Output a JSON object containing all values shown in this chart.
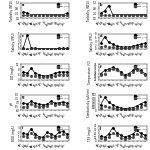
{
  "months": [
    "Jan",
    "Feb",
    "Mar",
    "Apr",
    "May",
    "Jun",
    "Jul",
    "Aug",
    "Sep",
    "Oct",
    "Nov",
    "Dec"
  ],
  "panels": [
    {
      "label": "a",
      "ylabel": "Turbidity (NTU)",
      "xlabel": "Months",
      "dry": [
        0.5,
        0.4,
        0.3,
        0.3,
        0.3,
        0.3,
        0.3,
        0.3,
        0.3,
        0.3,
        0.3,
        0.4
      ],
      "wet": [
        0.3,
        0.3,
        0.3,
        0.3,
        0.3,
        0.3,
        0.3,
        0.3,
        0.3,
        0.3,
        0.3,
        0.3
      ],
      "ylim": [
        0,
        1.2
      ],
      "yticks": [
        0,
        0.4,
        0.8,
        1.2
      ]
    },
    {
      "label": "b",
      "ylabel": "Turbidity (NTU)",
      "xlabel": "Months",
      "dry": [
        0.4,
        0.6,
        1.0,
        0.3,
        0.3,
        0.3,
        0.3,
        0.3,
        0.3,
        0.3,
        0.3,
        0.3
      ],
      "wet": [
        0.3,
        0.3,
        0.3,
        0.3,
        0.3,
        0.3,
        0.3,
        0.3,
        0.3,
        0.3,
        0.3,
        0.3
      ],
      "ylim": [
        0,
        1.2
      ],
      "yticks": [
        0,
        0.4,
        0.8,
        1.2
      ]
    },
    {
      "label": "c",
      "ylabel": "Salinity (PSU)",
      "xlabel": "Months",
      "dry": [
        0.2,
        4.5,
        0.4,
        0.2,
        0.1,
        0.1,
        0.1,
        0.1,
        0.1,
        0.2,
        0.2,
        0.2
      ],
      "wet": [
        0.1,
        0.1,
        0.1,
        0.1,
        0.1,
        0.1,
        0.1,
        0.1,
        0.1,
        0.1,
        0.1,
        0.1
      ],
      "ylim": [
        0,
        5
      ],
      "yticks": [
        0,
        1,
        2,
        3,
        4,
        5
      ],
      "wet_flat": true
    },
    {
      "label": "d",
      "ylabel": "Salinity (PSU)",
      "xlabel": "Months",
      "dry": [
        3.0,
        6.5,
        3.5,
        2.5,
        1.5,
        1.2,
        1.0,
        1.2,
        1.5,
        2.0,
        2.5,
        3.0
      ],
      "wet": [
        1.0,
        1.5,
        1.0,
        0.8,
        0.5,
        0.4,
        0.3,
        0.5,
        0.8,
        1.2,
        1.5,
        1.8
      ],
      "ylim": [
        0,
        8
      ],
      "yticks": [
        0,
        2,
        4,
        6,
        8
      ]
    },
    {
      "label": "e",
      "ylabel": "DO (mg/L)",
      "xlabel": "Months",
      "dry": [
        7.0,
        6.5,
        8.5,
        6.5,
        6.0,
        5.5,
        5.5,
        6.0,
        6.5,
        7.0,
        7.0,
        7.0
      ],
      "wet": [
        6.0,
        5.8,
        5.5,
        5.5,
        5.2,
        5.0,
        5.0,
        5.2,
        5.5,
        6.0,
        6.0,
        6.0
      ],
      "ylim": [
        4,
        10
      ],
      "yticks": [
        4,
        6,
        8,
        10
      ]
    },
    {
      "label": "f",
      "ylabel": "Temperature (°C)",
      "xlabel": "Months",
      "dry": [
        28,
        30,
        31,
        32,
        31,
        29,
        27,
        28,
        30,
        31,
        30,
        28
      ],
      "wet": [
        27,
        28,
        30,
        31,
        30,
        28,
        26,
        27,
        29,
        30,
        29,
        27
      ],
      "ylim": [
        24,
        34
      ],
      "yticks": [
        24,
        26,
        28,
        30,
        32,
        34
      ]
    },
    {
      "label": "g",
      "ylabel": "pH",
      "xlabel": "Months",
      "dry": [
        7.0,
        6.8,
        7.2,
        6.9,
        6.8,
        6.7,
        6.8,
        7.2,
        6.9,
        7.0,
        7.1,
        6.9
      ],
      "wet": [
        6.5,
        6.4,
        6.8,
        6.6,
        6.5,
        6.5,
        6.6,
        6.9,
        6.7,
        6.8,
        6.8,
        6.6
      ],
      "ylim": [
        6.0,
        8.0
      ],
      "yticks": [
        6.0,
        6.5,
        7.0,
        7.5,
        8.0
      ]
    },
    {
      "label": "h",
      "ylabel": "Conductivity (µS/cm)",
      "xlabel": "Months",
      "dry": [
        180,
        420,
        260,
        180,
        120,
        80,
        55,
        65,
        90,
        140,
        210,
        280
      ],
      "wet": [
        90,
        140,
        95,
        65,
        45,
        30,
        22,
        28,
        42,
        75,
        120,
        170
      ],
      "ylim": [
        0,
        500
      ],
      "yticks": [
        0,
        100,
        200,
        300,
        400,
        500
      ]
    },
    {
      "label": "i",
      "ylabel": "BOD (mg/L)",
      "xlabel": "Months",
      "dry": [
        1.8,
        1.5,
        2.8,
        1.5,
        1.0,
        0.8,
        2.0,
        1.5,
        1.2,
        2.0,
        2.2,
        1.5
      ],
      "wet": [
        1.2,
        1.0,
        1.8,
        1.0,
        0.6,
        0.5,
        1.2,
        0.9,
        0.7,
        1.2,
        1.5,
        1.0
      ],
      "ylim": [
        0,
        3.5
      ],
      "yticks": [
        0,
        1,
        2,
        3
      ]
    },
    {
      "label": "j",
      "ylabel": "TSS (mg/L)",
      "xlabel": "Months",
      "dry": [
        12,
        10,
        18,
        35,
        22,
        15,
        10,
        14,
        18,
        28,
        20,
        15
      ],
      "wet": [
        8,
        5,
        10,
        20,
        15,
        8,
        5,
        8,
        10,
        18,
        12,
        9
      ],
      "ylim": [
        0,
        40
      ],
      "yticks": [
        0,
        10,
        20,
        30,
        40
      ]
    }
  ],
  "dry_color": "#000000",
  "wet_color": "#444444",
  "dry_marker": "o",
  "wet_marker": "s",
  "dry_linestyle": "-",
  "wet_linestyle": "--",
  "legend_dry": "Dry",
  "legend_wet": "Wet (Jan)",
  "bg_color": "#ffffff"
}
